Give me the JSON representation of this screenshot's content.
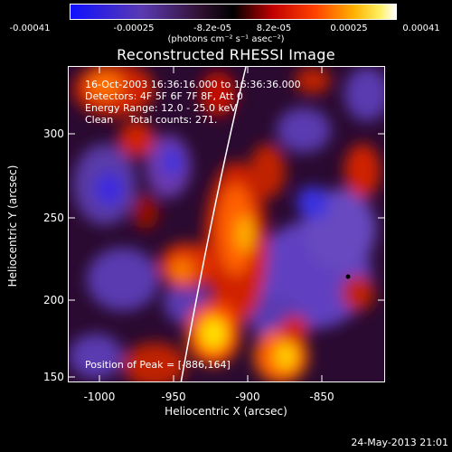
{
  "colorbar": {
    "ticks": [
      "-0.00041",
      "-0.00025",
      "-8.2e-05",
      "8.2e-05",
      "0.00025",
      "0.00041"
    ],
    "unit_text": "(photons cm⁻² s⁻¹ asec⁻²)",
    "colors": [
      "#0000ff",
      "#5a2a9a",
      "#2a102a",
      "#000000",
      "#ff2000",
      "#ff9000",
      "#ffe600",
      "#ffffff"
    ]
  },
  "title": "Reconstructed RHESSI Image",
  "info": {
    "time": "16-Oct-2003 16:36:16.000 to 16:36:36.000",
    "detectors": "Detectors: 4F 5F 6F 7F 8F, Att 0",
    "energy": "Energy Range: 12.0 - 25.0 keV",
    "clean": "Clean     Total counts: 271."
  },
  "peak_text": "Position of Peak = [-886,164]",
  "x_axis": {
    "label": "Heliocentric X (arcsec)",
    "ticks": [
      "-1000",
      "-950",
      "-900",
      "-850"
    ]
  },
  "y_axis": {
    "label": "Heliocentric Y (arcsec)",
    "ticks": [
      "300",
      "250",
      "200",
      "150"
    ]
  },
  "footer_date": "24-May-2013 21:01"
}
